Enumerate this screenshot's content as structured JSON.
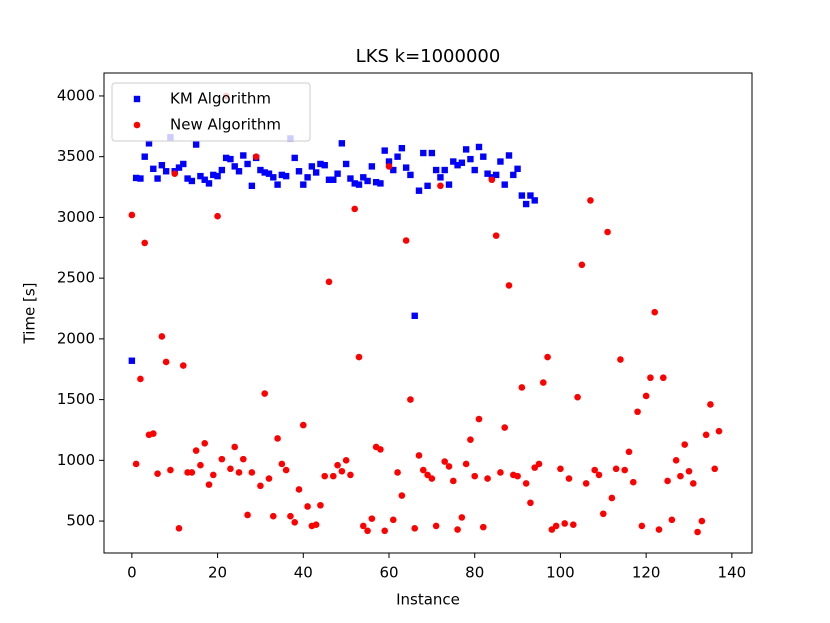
{
  "chart_data": {
    "type": "scatter",
    "title": "LKS k=1000000",
    "xlabel": "Instance",
    "ylabel": "Time [s]",
    "xlim": [
      -6.5,
      144.7
    ],
    "ylim": [
      237,
      4189
    ],
    "xticks": [
      0,
      20,
      40,
      60,
      80,
      100,
      120,
      140
    ],
    "yticks": [
      500,
      1000,
      1500,
      2000,
      2500,
      3000,
      3500,
      4000
    ],
    "legend": "upper left",
    "series": [
      {
        "name": "KM Algorithm",
        "color": "#0000ff",
        "marker": "square",
        "x": [
          0,
          1,
          2,
          3,
          4,
          5,
          6,
          7,
          8,
          9,
          10,
          11,
          12,
          13,
          14,
          15,
          16,
          17,
          18,
          19,
          20,
          21,
          22,
          23,
          24,
          25,
          26,
          27,
          28,
          29,
          30,
          31,
          32,
          33,
          34,
          35,
          36,
          37,
          38,
          39,
          40,
          41,
          42,
          43,
          44,
          45,
          46,
          47,
          48,
          49,
          50,
          51,
          52,
          53,
          54,
          55,
          56,
          57,
          58,
          59,
          60,
          61,
          62,
          63,
          64,
          65,
          66,
          67,
          68,
          69,
          70,
          71,
          72,
          73,
          74,
          75,
          76,
          77,
          78,
          79,
          80,
          81,
          82,
          83,
          84,
          85,
          86,
          87,
          88,
          89,
          90,
          91,
          92,
          93,
          94
        ],
        "values": [
          1820,
          3325,
          3320,
          3500,
          3610,
          3400,
          3320,
          3430,
          3380,
          3660,
          3380,
          3410,
          3440,
          3320,
          3300,
          3600,
          3340,
          3310,
          3280,
          3350,
          3340,
          3390,
          3490,
          3480,
          3420,
          3380,
          3510,
          3440,
          3260,
          3490,
          3390,
          3370,
          3360,
          3330,
          3270,
          3350,
          3340,
          3650,
          3490,
          3380,
          3270,
          3330,
          3420,
          3370,
          3440,
          3430,
          3310,
          3310,
          3360,
          3610,
          3440,
          3320,
          3280,
          3270,
          3330,
          3300,
          3420,
          3290,
          3280,
          3550,
          3460,
          3390,
          3500,
          3570,
          3410,
          3350,
          2190,
          3220,
          3530,
          3260,
          3530,
          3390,
          3330,
          3390,
          3270,
          3460,
          3430,
          3450,
          3560,
          3480,
          3390,
          3580,
          3500,
          3360,
          3330,
          3350,
          3460,
          3270,
          3510,
          3350,
          3400,
          3180,
          3110,
          3180,
          3140
        ]
      },
      {
        "name": "New Algorithm",
        "color": "#ff0000",
        "marker": "circle",
        "x": [
          0,
          1,
          2,
          3,
          4,
          5,
          6,
          7,
          8,
          9,
          10,
          11,
          12,
          13,
          14,
          15,
          16,
          17,
          18,
          19,
          20,
          21,
          22,
          23,
          24,
          25,
          26,
          27,
          28,
          29,
          30,
          31,
          32,
          33,
          34,
          35,
          36,
          37,
          38,
          39,
          40,
          41,
          42,
          43,
          44,
          45,
          46,
          47,
          48,
          49,
          50,
          51,
          52,
          53,
          54,
          55,
          56,
          57,
          58,
          59,
          60,
          61,
          62,
          63,
          64,
          65,
          66,
          67,
          68,
          69,
          70,
          71,
          72,
          73,
          74,
          75,
          76,
          77,
          78,
          79,
          80,
          81,
          82,
          83,
          84,
          85,
          86,
          87,
          88,
          89,
          90,
          91,
          92,
          93,
          94,
          95,
          96,
          97,
          98,
          99,
          100,
          101,
          102,
          103,
          104,
          105,
          106,
          107,
          108,
          109,
          110,
          111,
          112,
          113,
          114,
          115,
          116,
          117,
          118,
          119,
          120,
          121,
          122,
          123,
          124,
          125,
          126,
          127,
          128,
          129,
          130,
          131,
          132,
          133,
          134,
          135,
          136,
          137
        ],
        "values": [
          3020,
          970,
          1670,
          2790,
          1210,
          1220,
          890,
          2020,
          1810,
          920,
          3360,
          440,
          1780,
          900,
          900,
          1080,
          960,
          1140,
          800,
          880,
          3010,
          1010,
          4000,
          930,
          1110,
          900,
          1010,
          550,
          900,
          3500,
          790,
          1550,
          850,
          540,
          1180,
          970,
          920,
          540,
          490,
          760,
          1290,
          620,
          460,
          470,
          630,
          870,
          2470,
          870,
          960,
          910,
          1000,
          880,
          3070,
          1850,
          460,
          420,
          520,
          1110,
          1090,
          420,
          3420,
          510,
          900,
          710,
          2810,
          1500,
          440,
          1040,
          920,
          880,
          850,
          460,
          3260,
          990,
          950,
          830,
          430,
          530,
          970,
          1170,
          870,
          1340,
          450,
          850,
          3310,
          2850,
          900,
          1270,
          2440,
          880,
          870,
          1600,
          810,
          650,
          940,
          970,
          1640,
          1850,
          430,
          460,
          930,
          480,
          850,
          470,
          1520,
          2610,
          810,
          3140,
          920,
          880,
          560,
          2880,
          690,
          930,
          1830,
          920,
          1070,
          820,
          1400,
          460,
          1530,
          1680,
          2220,
          430,
          1680,
          830,
          510,
          1000,
          870,
          1130,
          910,
          810,
          410,
          500,
          1210,
          1460,
          930,
          1240
        ]
      }
    ]
  }
}
